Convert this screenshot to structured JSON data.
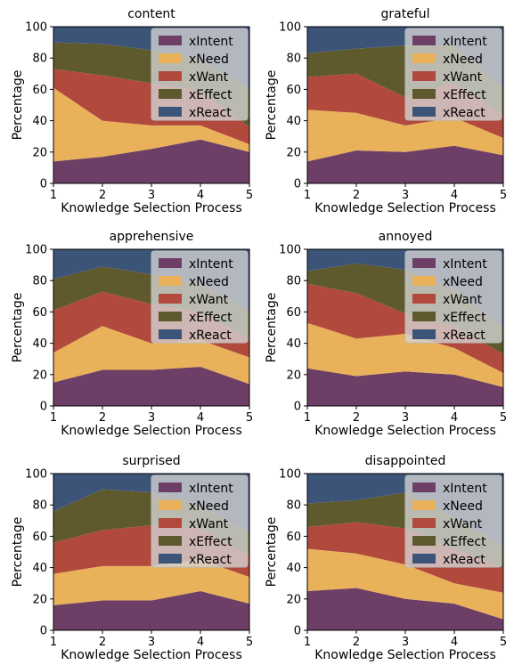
{
  "colors": {
    "xIntent": "#6e3f66",
    "xNeed": "#e8b15a",
    "xWant": "#b1493d",
    "xEffect": "#5e5a2e",
    "xReact": "#3c5478"
  },
  "chart_data": [
    {
      "type": "area",
      "title": "content",
      "xlabel": "Knowledge Selection Process",
      "ylabel": "Percentage",
      "x": [
        1,
        2,
        3,
        4,
        5
      ],
      "xlim": [
        1,
        5
      ],
      "ylim": [
        0,
        100
      ],
      "yticks": [
        0,
        20,
        40,
        60,
        80,
        100
      ],
      "legend": "top-right",
      "series": [
        {
          "name": "xIntent",
          "values": [
            14,
            17,
            22,
            28,
            20
          ]
        },
        {
          "name": "xNeed",
          "values": [
            47,
            23,
            15,
            9,
            5
          ]
        },
        {
          "name": "xWant",
          "values": [
            12,
            29,
            27,
            22,
            11
          ]
        },
        {
          "name": "xEffect",
          "values": [
            17,
            20,
            21,
            20,
            24
          ]
        },
        {
          "name": "xReact",
          "values": [
            10,
            11,
            15,
            21,
            40
          ]
        }
      ]
    },
    {
      "type": "area",
      "title": "grateful",
      "xlabel": "Knowledge Selection Process",
      "ylabel": "Percentage",
      "x": [
        1,
        2,
        3,
        4,
        5
      ],
      "xlim": [
        1,
        5
      ],
      "ylim": [
        0,
        100
      ],
      "yticks": [
        0,
        20,
        40,
        60,
        80,
        100
      ],
      "legend": "top-right",
      "series": [
        {
          "name": "xIntent",
          "values": [
            14,
            21,
            20,
            24,
            18
          ]
        },
        {
          "name": "xNeed",
          "values": [
            33,
            24,
            17,
            18,
            11
          ]
        },
        {
          "name": "xWant",
          "values": [
            21,
            25,
            18,
            22,
            15
          ]
        },
        {
          "name": "xEffect",
          "values": [
            15,
            16,
            33,
            24,
            17
          ]
        },
        {
          "name": "xReact",
          "values": [
            17,
            14,
            12,
            12,
            39
          ]
        }
      ]
    },
    {
      "type": "area",
      "title": "apprehensive",
      "xlabel": "Knowledge Selection Process",
      "ylabel": "Percentage",
      "x": [
        1,
        2,
        3,
        4,
        5
      ],
      "xlim": [
        1,
        5
      ],
      "ylim": [
        0,
        100
      ],
      "yticks": [
        0,
        20,
        40,
        60,
        80,
        100
      ],
      "legend": "top-right",
      "series": [
        {
          "name": "xIntent",
          "values": [
            15,
            23,
            23,
            25,
            14
          ]
        },
        {
          "name": "xNeed",
          "values": [
            19,
            28,
            17,
            17,
            17
          ]
        },
        {
          "name": "xWant",
          "values": [
            27,
            22,
            25,
            18,
            12
          ]
        },
        {
          "name": "xEffect",
          "values": [
            20,
            16,
            19,
            18,
            18
          ]
        },
        {
          "name": "xReact",
          "values": [
            19,
            11,
            16,
            22,
            39
          ]
        }
      ]
    },
    {
      "type": "area",
      "title": "annoyed",
      "xlabel": "Knowledge Selection Process",
      "ylabel": "Percentage",
      "x": [
        1,
        2,
        3,
        4,
        5
      ],
      "xlim": [
        1,
        5
      ],
      "ylim": [
        0,
        100
      ],
      "yticks": [
        0,
        20,
        40,
        60,
        80,
        100
      ],
      "legend": "top-right",
      "series": [
        {
          "name": "xIntent",
          "values": [
            24,
            19,
            22,
            20,
            12
          ]
        },
        {
          "name": "xNeed",
          "values": [
            29,
            24,
            24,
            17,
            9
          ]
        },
        {
          "name": "xWant",
          "values": [
            25,
            29,
            13,
            14,
            12
          ]
        },
        {
          "name": "xEffect",
          "values": [
            8,
            19,
            28,
            24,
            17
          ]
        },
        {
          "name": "xReact",
          "values": [
            14,
            9,
            13,
            25,
            50
          ]
        }
      ]
    },
    {
      "type": "area",
      "title": "surprised",
      "xlabel": "Knowledge Selection Process",
      "ylabel": "Percentage",
      "x": [
        1,
        2,
        3,
        4,
        5
      ],
      "xlim": [
        1,
        5
      ],
      "ylim": [
        0,
        100
      ],
      "yticks": [
        0,
        20,
        40,
        60,
        80,
        100
      ],
      "legend": "top-right",
      "series": [
        {
          "name": "xIntent",
          "values": [
            16,
            19,
            19,
            25,
            17
          ]
        },
        {
          "name": "xNeed",
          "values": [
            20,
            22,
            22,
            20,
            17
          ]
        },
        {
          "name": "xWant",
          "values": [
            20,
            23,
            26,
            20,
            14
          ]
        },
        {
          "name": "xEffect",
          "values": [
            20,
            26,
            21,
            15,
            14
          ]
        },
        {
          "name": "xReact",
          "values": [
            24,
            10,
            12,
            20,
            38
          ]
        }
      ]
    },
    {
      "type": "area",
      "title": "disappointed",
      "xlabel": "Knowledge Selection Process",
      "ylabel": "Percentage",
      "x": [
        1,
        2,
        3,
        4,
        5
      ],
      "xlim": [
        1,
        5
      ],
      "ylim": [
        0,
        100
      ],
      "yticks": [
        0,
        20,
        40,
        60,
        80,
        100
      ],
      "legend": "top-right",
      "series": [
        {
          "name": "xIntent",
          "values": [
            25,
            27,
            20,
            17,
            7
          ]
        },
        {
          "name": "xNeed",
          "values": [
            27,
            22,
            22,
            13,
            17
          ]
        },
        {
          "name": "xWant",
          "values": [
            14,
            20,
            23,
            22,
            16
          ]
        },
        {
          "name": "xEffect",
          "values": [
            15,
            14,
            23,
            20,
            14
          ]
        },
        {
          "name": "xReact",
          "values": [
            19,
            17,
            12,
            28,
            46
          ]
        }
      ]
    }
  ]
}
